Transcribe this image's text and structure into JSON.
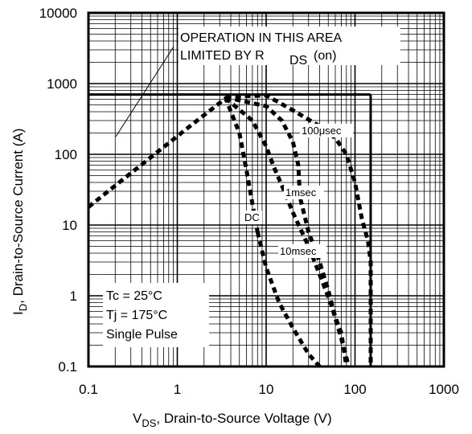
{
  "chart_data": {
    "type": "line",
    "title": "",
    "xlabel": {
      "main": "V",
      "sub": "DS",
      "rest": ", Drain-to-Source Voltage (V)"
    },
    "ylabel": {
      "main": "I",
      "sub": "D",
      "rest": ",  Drain-to-Source Current (A)"
    },
    "x_scale": "log",
    "y_scale": "log",
    "xlim": [
      0.1,
      1000
    ],
    "ylim": [
      0.1,
      10000
    ],
    "x_ticks": [
      0.1,
      1,
      10,
      100,
      1000
    ],
    "x_tick_labels": [
      "0.1",
      "1",
      "10",
      "100",
      "1000"
    ],
    "y_ticks": [
      0.1,
      1,
      10,
      100,
      1000,
      10000
    ],
    "y_tick_labels": [
      "0.1",
      "1",
      "10",
      "100",
      "1000",
      "10000"
    ],
    "grid": true,
    "annotation_lines": [
      "OPERATION IN THIS AREA",
      "LIMITED BY R",
      "DS",
      "(on)"
    ],
    "conditions": [
      "Tc = 25°C",
      "Tj = 175°C",
      "Single Pulse"
    ],
    "limits": {
      "current_max_A": 700,
      "voltage_max_V": 150
    },
    "series": [
      {
        "name": "DC",
        "x": [
          0.1,
          0.5,
          1.5,
          3.5,
          5,
          6,
          7,
          8
        ],
        "y": [
          18,
          90,
          270,
          620,
          200,
          60,
          20,
          8
        ]
      },
      {
        "name": "10msec",
        "x": [
          8,
          10,
          14,
          20,
          30,
          40
        ],
        "y": [
          8,
          2.5,
          0.8,
          0.35,
          0.15,
          0.1
        ]
      },
      {
        "name": "1msec",
        "x": [
          3.5,
          7,
          10,
          12,
          16,
          20,
          30,
          40,
          55,
          70,
          85
        ],
        "y": [
          620,
          300,
          130,
          70,
          30,
          15,
          5,
          2.0,
          0.7,
          0.25,
          0.1
        ]
      },
      {
        "name": "100μsec",
        "x": [
          3.5,
          10,
          15,
          20,
          23,
          24,
          30,
          40,
          50,
          60,
          70,
          80
        ],
        "y": [
          640,
          480,
          300,
          150,
          70,
          25,
          8,
          3,
          1.2,
          0.5,
          0.3,
          0.1
        ]
      },
      {
        "name": "",
        "x": [
          3.5,
          10,
          20,
          40,
          60,
          80,
          100,
          120,
          140,
          150,
          150,
          150
        ],
        "y": [
          650,
          680,
          420,
          250,
          170,
          100,
          40,
          12,
          6,
          3,
          0.5,
          0.1
        ]
      }
    ],
    "series_labels": [
      "DC",
      "10msec",
      "1msec",
      "100μsec"
    ]
  }
}
